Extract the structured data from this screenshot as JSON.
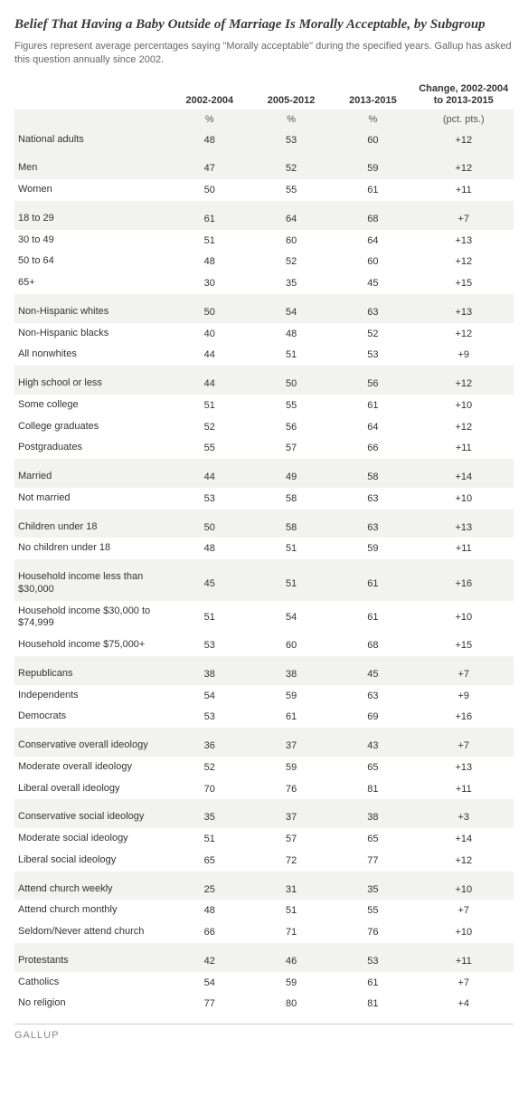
{
  "title": "Belief That Having a Baby Outside of Marriage Is Morally Acceptable, by Subgroup",
  "subtitle": "Figures represent average percentages saying \"Morally acceptable\" during the specified years. Gallup has asked this question annually since 2002.",
  "columns": {
    "c1": "2002-2004",
    "c2": "2005-2012",
    "c3": "2013-2015",
    "c4": "Change, 2002-2004 to 2013-2015"
  },
  "units": {
    "u1": "%",
    "u2": "%",
    "u3": "%",
    "u4": "(pct. pts.)"
  },
  "groups": [
    {
      "rows": [
        {
          "label": "National adults",
          "v": [
            "48",
            "53",
            "60",
            "+12"
          ]
        }
      ]
    },
    {
      "rows": [
        {
          "label": "Men",
          "v": [
            "47",
            "52",
            "59",
            "+12"
          ]
        },
        {
          "label": "Women",
          "v": [
            "50",
            "55",
            "61",
            "+11"
          ]
        }
      ]
    },
    {
      "rows": [
        {
          "label": "18 to 29",
          "v": [
            "61",
            "64",
            "68",
            "+7"
          ]
        },
        {
          "label": "30 to 49",
          "v": [
            "51",
            "60",
            "64",
            "+13"
          ]
        },
        {
          "label": "50 to 64",
          "v": [
            "48",
            "52",
            "60",
            "+12"
          ]
        },
        {
          "label": "65+",
          "v": [
            "30",
            "35",
            "45",
            "+15"
          ]
        }
      ]
    },
    {
      "rows": [
        {
          "label": "Non-Hispanic whites",
          "v": [
            "50",
            "54",
            "63",
            "+13"
          ]
        },
        {
          "label": "Non-Hispanic blacks",
          "v": [
            "40",
            "48",
            "52",
            "+12"
          ]
        },
        {
          "label": "All nonwhites",
          "v": [
            "44",
            "51",
            "53",
            "+9"
          ]
        }
      ]
    },
    {
      "rows": [
        {
          "label": "High school or less",
          "v": [
            "44",
            "50",
            "56",
            "+12"
          ]
        },
        {
          "label": "Some college",
          "v": [
            "51",
            "55",
            "61",
            "+10"
          ]
        },
        {
          "label": "College graduates",
          "v": [
            "52",
            "56",
            "64",
            "+12"
          ]
        },
        {
          "label": "Postgraduates",
          "v": [
            "55",
            "57",
            "66",
            "+11"
          ]
        }
      ]
    },
    {
      "rows": [
        {
          "label": "Married",
          "v": [
            "44",
            "49",
            "58",
            "+14"
          ]
        },
        {
          "label": "Not married",
          "v": [
            "53",
            "58",
            "63",
            "+10"
          ]
        }
      ]
    },
    {
      "rows": [
        {
          "label": "Children under 18",
          "v": [
            "50",
            "58",
            "63",
            "+13"
          ]
        },
        {
          "label": "No children under 18",
          "v": [
            "48",
            "51",
            "59",
            "+11"
          ]
        }
      ]
    },
    {
      "rows": [
        {
          "label": "Household income less than $30,000",
          "v": [
            "45",
            "51",
            "61",
            "+16"
          ]
        },
        {
          "label": "Household income $30,000 to $74,999",
          "v": [
            "51",
            "54",
            "61",
            "+10"
          ]
        },
        {
          "label": "Household income $75,000+",
          "v": [
            "53",
            "60",
            "68",
            "+15"
          ]
        }
      ]
    },
    {
      "rows": [
        {
          "label": "Republicans",
          "v": [
            "38",
            "38",
            "45",
            "+7"
          ]
        },
        {
          "label": "Independents",
          "v": [
            "54",
            "59",
            "63",
            "+9"
          ]
        },
        {
          "label": "Democrats",
          "v": [
            "53",
            "61",
            "69",
            "+16"
          ]
        }
      ]
    },
    {
      "rows": [
        {
          "label": "Conservative overall ideology",
          "v": [
            "36",
            "37",
            "43",
            "+7"
          ]
        },
        {
          "label": "Moderate overall ideology",
          "v": [
            "52",
            "59",
            "65",
            "+13"
          ]
        },
        {
          "label": "Liberal overall ideology",
          "v": [
            "70",
            "76",
            "81",
            "+11"
          ]
        }
      ]
    },
    {
      "rows": [
        {
          "label": "Conservative social ideology",
          "v": [
            "35",
            "37",
            "38",
            "+3"
          ]
        },
        {
          "label": "Moderate social ideology",
          "v": [
            "51",
            "57",
            "65",
            "+14"
          ]
        },
        {
          "label": "Liberal social ideology",
          "v": [
            "65",
            "72",
            "77",
            "+12"
          ]
        }
      ]
    },
    {
      "rows": [
        {
          "label": "Attend church weekly",
          "v": [
            "25",
            "31",
            "35",
            "+10"
          ]
        },
        {
          "label": "Attend church monthly",
          "v": [
            "48",
            "51",
            "55",
            "+7"
          ]
        },
        {
          "label": "Seldom/Never attend church",
          "v": [
            "66",
            "71",
            "76",
            "+10"
          ]
        }
      ]
    },
    {
      "rows": [
        {
          "label": "Protestants",
          "v": [
            "42",
            "46",
            "53",
            "+11"
          ]
        },
        {
          "label": "Catholics",
          "v": [
            "54",
            "59",
            "61",
            "+7"
          ]
        },
        {
          "label": "No religion",
          "v": [
            "77",
            "80",
            "81",
            "+4"
          ]
        }
      ]
    }
  ],
  "footer": "GALLUP",
  "colors": {
    "background": "#ffffff",
    "shaded_row": "#f2f2f0",
    "text": "#333333",
    "subtitle": "#666666",
    "footer": "#888888",
    "border": "#cccccc"
  },
  "typography": {
    "title_fontsize": 15,
    "body_fontsize": 11,
    "title_font": "Georgia, serif",
    "body_font": "Arial, sans-serif"
  }
}
